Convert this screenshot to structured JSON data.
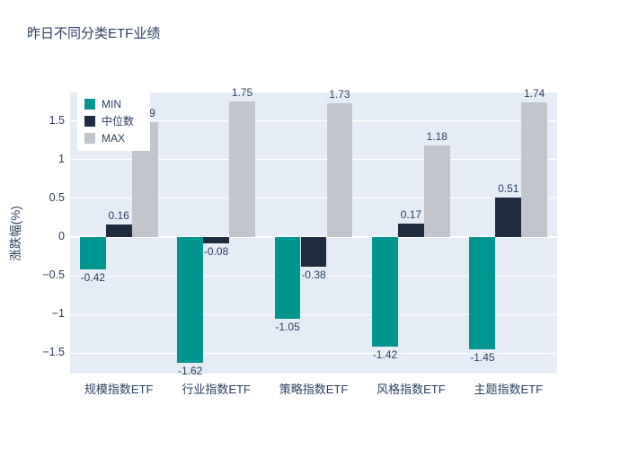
{
  "chart_data": {
    "type": "bar",
    "title": "昨日不同分类ETF业绩",
    "xlabel": "",
    "ylabel": "涨跌幅(%)",
    "categories": [
      "规模指数ETF",
      "行业指数ETF",
      "策略指数ETF",
      "风格指数ETF",
      "主题指数ETF"
    ],
    "series": [
      {
        "name": "MIN",
        "color": "#00968F",
        "values": [
          -0.42,
          -1.62,
          -1.05,
          -1.42,
          -1.45
        ]
      },
      {
        "name": "中位数",
        "color": "#1F2B3E",
        "values": [
          0.16,
          -0.08,
          -0.38,
          0.17,
          0.51
        ]
      },
      {
        "name": "MAX",
        "color": "#C2C6CC",
        "values": [
          1.49,
          1.75,
          1.73,
          1.18,
          1.74
        ]
      }
    ],
    "yticks": [
      {
        "value": 1.5,
        "label": "1.5"
      },
      {
        "value": 1.0,
        "label": "1"
      },
      {
        "value": 0.5,
        "label": "0.5"
      },
      {
        "value": 0.0,
        "label": "0"
      },
      {
        "value": -0.5,
        "label": "−0.5"
      },
      {
        "value": -1.0,
        "label": "−1"
      },
      {
        "value": -1.5,
        "label": "−1.5"
      }
    ],
    "ylim": [
      -1.78,
      1.87
    ],
    "grid": true,
    "legend_position": "top-left",
    "colors": {
      "plot_background": "#E6ECF5",
      "grid_color": "#FFFFFF",
      "font_color": "#2A3F5F",
      "page_background": "#FFFFFF"
    }
  }
}
